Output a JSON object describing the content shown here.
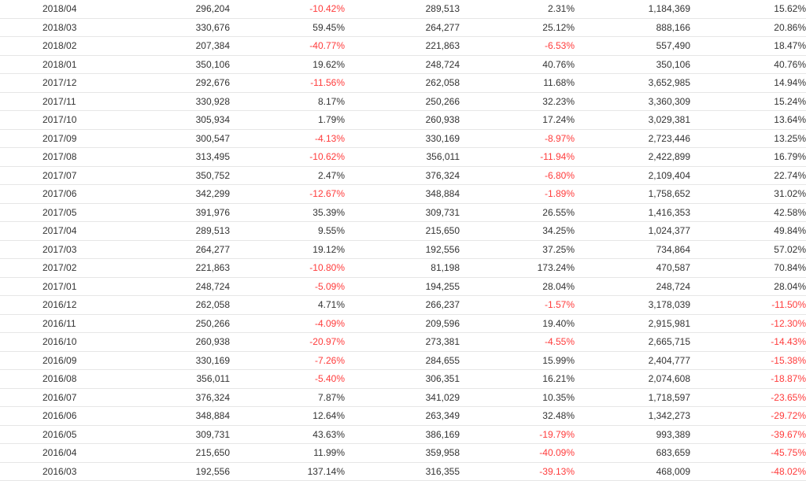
{
  "colors": {
    "negative": "#ff3b3b",
    "text": "#333333",
    "border": "#e6e6e6"
  },
  "rows": [
    {
      "month": "2018/04",
      "v1": "296,204",
      "r1": "-10.42%",
      "v2": "289,513",
      "r2": "2.31%",
      "v3": "1,184,369",
      "r3": "15.62%"
    },
    {
      "month": "2018/03",
      "v1": "330,676",
      "r1": "59.45%",
      "v2": "264,277",
      "r2": "25.12%",
      "v3": "888,166",
      "r3": "20.86%"
    },
    {
      "month": "2018/02",
      "v1": "207,384",
      "r1": "-40.77%",
      "v2": "221,863",
      "r2": "-6.53%",
      "v3": "557,490",
      "r3": "18.47%"
    },
    {
      "month": "2018/01",
      "v1": "350,106",
      "r1": "19.62%",
      "v2": "248,724",
      "r2": "40.76%",
      "v3": "350,106",
      "r3": "40.76%"
    },
    {
      "month": "2017/12",
      "v1": "292,676",
      "r1": "-11.56%",
      "v2": "262,058",
      "r2": "11.68%",
      "v3": "3,652,985",
      "r3": "14.94%"
    },
    {
      "month": "2017/11",
      "v1": "330,928",
      "r1": "8.17%",
      "v2": "250,266",
      "r2": "32.23%",
      "v3": "3,360,309",
      "r3": "15.24%"
    },
    {
      "month": "2017/10",
      "v1": "305,934",
      "r1": "1.79%",
      "v2": "260,938",
      "r2": "17.24%",
      "v3": "3,029,381",
      "r3": "13.64%"
    },
    {
      "month": "2017/09",
      "v1": "300,547",
      "r1": "-4.13%",
      "v2": "330,169",
      "r2": "-8.97%",
      "v3": "2,723,446",
      "r3": "13.25%"
    },
    {
      "month": "2017/08",
      "v1": "313,495",
      "r1": "-10.62%",
      "v2": "356,011",
      "r2": "-11.94%",
      "v3": "2,422,899",
      "r3": "16.79%"
    },
    {
      "month": "2017/07",
      "v1": "350,752",
      "r1": "2.47%",
      "v2": "376,324",
      "r2": "-6.80%",
      "v3": "2,109,404",
      "r3": "22.74%"
    },
    {
      "month": "2017/06",
      "v1": "342,299",
      "r1": "-12.67%",
      "v2": "348,884",
      "r2": "-1.89%",
      "v3": "1,758,652",
      "r3": "31.02%"
    },
    {
      "month": "2017/05",
      "v1": "391,976",
      "r1": "35.39%",
      "v2": "309,731",
      "r2": "26.55%",
      "v3": "1,416,353",
      "r3": "42.58%"
    },
    {
      "month": "2017/04",
      "v1": "289,513",
      "r1": "9.55%",
      "v2": "215,650",
      "r2": "34.25%",
      "v3": "1,024,377",
      "r3": "49.84%"
    },
    {
      "month": "2017/03",
      "v1": "264,277",
      "r1": "19.12%",
      "v2": "192,556",
      "r2": "37.25%",
      "v3": "734,864",
      "r3": "57.02%"
    },
    {
      "month": "2017/02",
      "v1": "221,863",
      "r1": "-10.80%",
      "v2": "81,198",
      "r2": "173.24%",
      "v3": "470,587",
      "r3": "70.84%"
    },
    {
      "month": "2017/01",
      "v1": "248,724",
      "r1": "-5.09%",
      "v2": "194,255",
      "r2": "28.04%",
      "v3": "248,724",
      "r3": "28.04%"
    },
    {
      "month": "2016/12",
      "v1": "262,058",
      "r1": "4.71%",
      "v2": "266,237",
      "r2": "-1.57%",
      "v3": "3,178,039",
      "r3": "-11.50%"
    },
    {
      "month": "2016/11",
      "v1": "250,266",
      "r1": "-4.09%",
      "v2": "209,596",
      "r2": "19.40%",
      "v3": "2,915,981",
      "r3": "-12.30%"
    },
    {
      "month": "2016/10",
      "v1": "260,938",
      "r1": "-20.97%",
      "v2": "273,381",
      "r2": "-4.55%",
      "v3": "2,665,715",
      "r3": "-14.43%"
    },
    {
      "month": "2016/09",
      "v1": "330,169",
      "r1": "-7.26%",
      "v2": "284,655",
      "r2": "15.99%",
      "v3": "2,404,777",
      "r3": "-15.38%"
    },
    {
      "month": "2016/08",
      "v1": "356,011",
      "r1": "-5.40%",
      "v2": "306,351",
      "r2": "16.21%",
      "v3": "2,074,608",
      "r3": "-18.87%"
    },
    {
      "month": "2016/07",
      "v1": "376,324",
      "r1": "7.87%",
      "v2": "341,029",
      "r2": "10.35%",
      "v3": "1,718,597",
      "r3": "-23.65%"
    },
    {
      "month": "2016/06",
      "v1": "348,884",
      "r1": "12.64%",
      "v2": "263,349",
      "r2": "32.48%",
      "v3": "1,342,273",
      "r3": "-29.72%"
    },
    {
      "month": "2016/05",
      "v1": "309,731",
      "r1": "43.63%",
      "v2": "386,169",
      "r2": "-19.79%",
      "v3": "993,389",
      "r3": "-39.67%"
    },
    {
      "month": "2016/04",
      "v1": "215,650",
      "r1": "11.99%",
      "v2": "359,958",
      "r2": "-40.09%",
      "v3": "683,659",
      "r3": "-45.75%"
    },
    {
      "month": "2016/03",
      "v1": "192,556",
      "r1": "137.14%",
      "v2": "316,355",
      "r2": "-39.13%",
      "v3": "468,009",
      "r3": "-48.02%"
    }
  ]
}
